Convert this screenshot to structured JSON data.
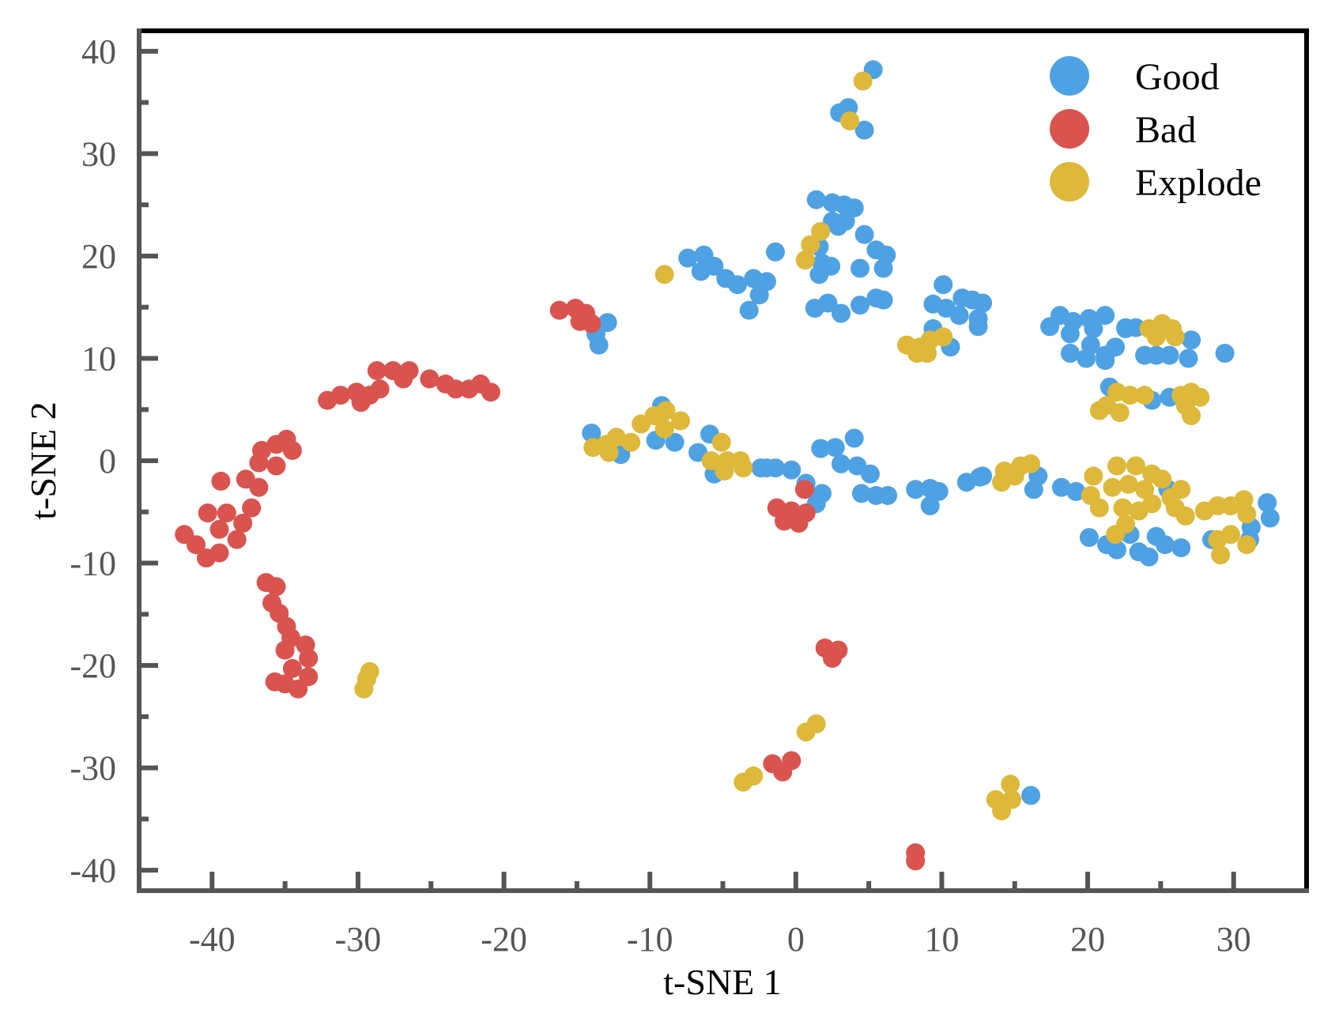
{
  "chart_data": {
    "type": "scatter",
    "title": "",
    "xlabel": "t-SNE 1",
    "ylabel": "t-SNE 2",
    "xlim": [
      -45,
      35
    ],
    "ylim": [
      -42,
      42
    ],
    "grid": false,
    "legend_position": "top-right",
    "x_ticks": [
      -40,
      -30,
      -20,
      -10,
      0,
      10,
      20,
      30
    ],
    "x_tick_labels": [
      "-40",
      "-30",
      "-20",
      "-10",
      "0",
      "10",
      "20",
      "30"
    ],
    "y_ticks": [
      40,
      30,
      20,
      10,
      0,
      -10,
      -20,
      -30,
      -40
    ],
    "y_tick_labels": [
      "40",
      "30",
      "20",
      "10",
      "0",
      "-10",
      "-20",
      "-30",
      "-40"
    ],
    "series": [
      {
        "name": "Good",
        "color": "#4EA1E2",
        "points": [
          [
            5.3,
            38.2
          ],
          [
            4.7,
            32.3
          ],
          [
            3.0,
            34.0
          ],
          [
            3.6,
            34.5
          ],
          [
            -7.4,
            19.8
          ],
          [
            -6.3,
            20.1
          ],
          [
            -6.5,
            18.5
          ],
          [
            -5.6,
            19.0
          ],
          [
            -4.8,
            17.8
          ],
          [
            -4.0,
            17.2
          ],
          [
            -2.9,
            17.8
          ],
          [
            -2.0,
            17.5
          ],
          [
            -2.5,
            16.2
          ],
          [
            -3.2,
            14.7
          ],
          [
            -1.4,
            20.4
          ],
          [
            2.9,
            22.9
          ],
          [
            1.4,
            25.5
          ],
          [
            2.5,
            25.2
          ],
          [
            3.3,
            25.0
          ],
          [
            4.0,
            24.7
          ],
          [
            2.5,
            23.4
          ],
          [
            3.4,
            23.4
          ],
          [
            1.6,
            20.9
          ],
          [
            1.8,
            19.3
          ],
          [
            2.4,
            19.0
          ],
          [
            1.6,
            18.2
          ],
          [
            4.7,
            22.1
          ],
          [
            5.5,
            20.6
          ],
          [
            6.2,
            20.1
          ],
          [
            6.0,
            18.8
          ],
          [
            4.4,
            18.8
          ],
          [
            1.3,
            14.9
          ],
          [
            2.2,
            15.4
          ],
          [
            3.1,
            14.4
          ],
          [
            4.4,
            15.2
          ],
          [
            5.5,
            15.9
          ],
          [
            6.0,
            15.7
          ],
          [
            -12.9,
            13.5
          ],
          [
            -13.5,
            11.3
          ],
          [
            -13.7,
            12.4
          ],
          [
            10.1,
            17.2
          ],
          [
            9.4,
            15.3
          ],
          [
            10.3,
            14.9
          ],
          [
            11.4,
            15.9
          ],
          [
            12.1,
            15.7
          ],
          [
            12.8,
            15.4
          ],
          [
            11.2,
            14.2
          ],
          [
            12.5,
            13.9
          ],
          [
            12.5,
            13.1
          ],
          [
            9.4,
            12.9
          ],
          [
            10.6,
            11.1
          ],
          [
            17.4,
            13.1
          ],
          [
            18.1,
            14.2
          ],
          [
            19.0,
            13.6
          ],
          [
            20.1,
            13.9
          ],
          [
            21.2,
            14.2
          ],
          [
            20.4,
            12.9
          ],
          [
            18.8,
            12.4
          ],
          [
            20.2,
            11.3
          ],
          [
            18.8,
            10.5
          ],
          [
            19.9,
            10.0
          ],
          [
            21.2,
            10.3
          ],
          [
            21.9,
            11.1
          ],
          [
            22.6,
            12.9
          ],
          [
            22.6,
            13.0
          ],
          [
            23.3,
            13.0
          ],
          [
            21.2,
            9.8
          ],
          [
            23.9,
            10.3
          ],
          [
            24.7,
            10.3
          ],
          [
            25.6,
            10.3
          ],
          [
            26.9,
            10.0
          ],
          [
            27.1,
            11.8
          ],
          [
            29.4,
            10.5
          ],
          [
            24.4,
            5.9
          ],
          [
            25.6,
            6.2
          ],
          [
            21.5,
            7.2
          ],
          [
            -14.0,
            2.7
          ],
          [
            -12.0,
            0.6
          ],
          [
            -9.2,
            5.4
          ],
          [
            -8.3,
            1.8
          ],
          [
            -9.6,
            2.0
          ],
          [
            -5.9,
            2.6
          ],
          [
            -6.7,
            0.8
          ],
          [
            -5.6,
            -1.3
          ],
          [
            -2.4,
            -0.7
          ],
          [
            -1.4,
            -0.7
          ],
          [
            -0.3,
            -0.9
          ],
          [
            -2.0,
            -0.7
          ],
          [
            0.7,
            -2.2
          ],
          [
            1.8,
            -3.2
          ],
          [
            1.4,
            -4.2
          ],
          [
            1.7,
            1.2
          ],
          [
            2.7,
            1.3
          ],
          [
            4.0,
            2.2
          ],
          [
            3.1,
            -0.3
          ],
          [
            4.2,
            -0.5
          ],
          [
            5.1,
            -1.3
          ],
          [
            4.5,
            -3.2
          ],
          [
            5.5,
            -3.4
          ],
          [
            6.3,
            -3.4
          ],
          [
            8.2,
            -2.8
          ],
          [
            9.2,
            -2.7
          ],
          [
            9.8,
            -3.0
          ],
          [
            9.2,
            -4.4
          ],
          [
            11.7,
            -2.1
          ],
          [
            12.6,
            -1.6
          ],
          [
            12.8,
            -1.5
          ],
          [
            16.3,
            -2.8
          ],
          [
            16.6,
            -1.5
          ],
          [
            18.2,
            -2.6
          ],
          [
            19.2,
            -3.0
          ],
          [
            20.1,
            -7.5
          ],
          [
            21.3,
            -8.2
          ],
          [
            22.0,
            -8.7
          ],
          [
            22.9,
            -7.2
          ],
          [
            23.5,
            -8.9
          ],
          [
            24.2,
            -9.4
          ],
          [
            24.7,
            -7.4
          ],
          [
            25.3,
            -8.2
          ],
          [
            26.4,
            -8.5
          ],
          [
            25.5,
            -2.8
          ],
          [
            28.5,
            -7.7
          ],
          [
            31.2,
            -6.5
          ],
          [
            32.3,
            -4.1
          ],
          [
            32.5,
            -5.6
          ],
          [
            31.1,
            -7.7
          ],
          [
            16.1,
            -32.7
          ]
        ]
      },
      {
        "name": "Bad",
        "color": "#D9534F",
        "points": [
          [
            -16.2,
            14.7
          ],
          [
            -15.1,
            14.9
          ],
          [
            -14.4,
            14.4
          ],
          [
            -14.0,
            13.4
          ],
          [
            -14.8,
            13.6
          ],
          [
            -32.1,
            5.9
          ],
          [
            -31.2,
            6.4
          ],
          [
            -30.1,
            6.7
          ],
          [
            -29.2,
            6.4
          ],
          [
            -29.8,
            5.7
          ],
          [
            -28.5,
            7.0
          ],
          [
            -28.7,
            8.8
          ],
          [
            -27.6,
            8.8
          ],
          [
            -26.5,
            8.8
          ],
          [
            -26.9,
            8.0
          ],
          [
            -25.1,
            8.0
          ],
          [
            -24.0,
            7.5
          ],
          [
            -23.3,
            7.0
          ],
          [
            -22.4,
            7.0
          ],
          [
            -21.6,
            7.5
          ],
          [
            -20.9,
            6.7
          ],
          [
            -34.9,
            2.1
          ],
          [
            -34.5,
            1.0
          ],
          [
            -35.6,
            1.6
          ],
          [
            -36.6,
            1.0
          ],
          [
            -36.8,
            -0.2
          ],
          [
            -35.6,
            -0.5
          ],
          [
            -39.4,
            -2.0
          ],
          [
            -37.7,
            -1.8
          ],
          [
            -36.8,
            -2.6
          ],
          [
            -37.3,
            -4.6
          ],
          [
            -40.3,
            -5.1
          ],
          [
            -39.0,
            -5.1
          ],
          [
            -37.9,
            -6.1
          ],
          [
            -38.3,
            -7.7
          ],
          [
            -41.9,
            -7.2
          ],
          [
            -41.1,
            -8.2
          ],
          [
            -40.4,
            -9.5
          ],
          [
            -39.5,
            -9.0
          ],
          [
            -39.5,
            -6.7
          ],
          [
            -36.3,
            -11.9
          ],
          [
            -35.6,
            -12.3
          ],
          [
            -35.9,
            -13.9
          ],
          [
            -35.4,
            -14.9
          ],
          [
            -34.9,
            -16.2
          ],
          [
            -34.6,
            -17.3
          ],
          [
            -33.6,
            -18.0
          ],
          [
            -35.0,
            -18.5
          ],
          [
            -33.4,
            -19.3
          ],
          [
            -34.5,
            -20.3
          ],
          [
            -33.4,
            -21.1
          ],
          [
            -35.7,
            -21.6
          ],
          [
            -34.1,
            -22.3
          ],
          [
            -35.0,
            -21.8
          ],
          [
            -1.3,
            -4.6
          ],
          [
            -0.3,
            -4.9
          ],
          [
            0.6,
            -2.8
          ],
          [
            0.7,
            -5.1
          ],
          [
            -0.8,
            -5.9
          ],
          [
            0.2,
            -6.1
          ],
          [
            2.0,
            -18.3
          ],
          [
            2.9,
            -18.5
          ],
          [
            2.5,
            -19.3
          ],
          [
            -1.6,
            -29.6
          ],
          [
            -0.3,
            -29.3
          ],
          [
            -0.9,
            -30.4
          ],
          [
            8.2,
            -38.3
          ],
          [
            8.2,
            -39.1
          ]
        ]
      },
      {
        "name": "Explode",
        "color": "#DDB83A",
        "points": [
          [
            4.6,
            37.1
          ],
          [
            3.7,
            33.2
          ],
          [
            -9.0,
            18.2
          ],
          [
            0.65,
            19.6
          ],
          [
            1.0,
            21.1
          ],
          [
            1.7,
            22.4
          ],
          [
            7.6,
            11.3
          ],
          [
            8.5,
            11.1
          ],
          [
            9.2,
            11.8
          ],
          [
            10.1,
            12.1
          ],
          [
            9.0,
            10.5
          ],
          [
            8.3,
            10.5
          ],
          [
            24.2,
            12.9
          ],
          [
            25.1,
            13.4
          ],
          [
            25.8,
            12.9
          ],
          [
            26.0,
            12.1
          ],
          [
            24.7,
            12.1
          ],
          [
            22.0,
            6.7
          ],
          [
            22.9,
            6.4
          ],
          [
            23.9,
            6.4
          ],
          [
            21.3,
            5.4
          ],
          [
            22.2,
            4.7
          ],
          [
            20.8,
            4.9
          ],
          [
            26.4,
            6.4
          ],
          [
            27.1,
            6.7
          ],
          [
            27.7,
            6.2
          ],
          [
            26.7,
            5.4
          ],
          [
            27.1,
            4.4
          ],
          [
            -13.9,
            1.3
          ],
          [
            -13.0,
            1.6
          ],
          [
            -12.3,
            2.3
          ],
          [
            -11.3,
            1.8
          ],
          [
            -10.6,
            3.6
          ],
          [
            -9.7,
            4.4
          ],
          [
            -8.9,
            4.9
          ],
          [
            -7.9,
            3.9
          ],
          [
            -9.0,
            3.1
          ],
          [
            -12.8,
            0.8
          ],
          [
            -5.1,
            1.8
          ],
          [
            -5.8,
            0.0
          ],
          [
            -4.7,
            0.0
          ],
          [
            -3.8,
            0.0
          ],
          [
            -4.9,
            -1.0
          ],
          [
            -3.6,
            -0.7
          ],
          [
            14.3,
            -1.0
          ],
          [
            15.4,
            -0.5
          ],
          [
            16.1,
            -0.3
          ],
          [
            14.1,
            -2.1
          ],
          [
            15.0,
            -1.5
          ],
          [
            20.4,
            -1.5
          ],
          [
            20.2,
            -3.4
          ],
          [
            20.8,
            -4.6
          ],
          [
            22.0,
            -0.5
          ],
          [
            23.3,
            -0.5
          ],
          [
            24.4,
            -1.3
          ],
          [
            25.1,
            -1.8
          ],
          [
            21.7,
            -2.6
          ],
          [
            22.8,
            -2.3
          ],
          [
            23.9,
            -2.8
          ],
          [
            22.4,
            -4.6
          ],
          [
            23.5,
            -4.9
          ],
          [
            24.4,
            -4.2
          ],
          [
            25.7,
            -3.6
          ],
          [
            26.4,
            -2.8
          ],
          [
            26.0,
            -4.6
          ],
          [
            26.7,
            -5.4
          ],
          [
            22.6,
            -6.2
          ],
          [
            21.9,
            -7.2
          ],
          [
            28.0,
            -4.9
          ],
          [
            28.9,
            -4.4
          ],
          [
            29.8,
            -4.4
          ],
          [
            30.7,
            -3.8
          ],
          [
            30.9,
            -5.2
          ],
          [
            28.9,
            -7.7
          ],
          [
            29.8,
            -7.2
          ],
          [
            30.9,
            -8.2
          ],
          [
            29.1,
            -9.2
          ],
          [
            -29.4,
            -21.3
          ],
          [
            -29.2,
            -20.6
          ],
          [
            -29.6,
            -22.3
          ],
          [
            0.7,
            -26.5
          ],
          [
            1.4,
            -25.7
          ],
          [
            -3.6,
            -31.4
          ],
          [
            -2.9,
            -30.8
          ],
          [
            14.7,
            -31.6
          ],
          [
            13.7,
            -33.1
          ],
          [
            14.8,
            -33.1
          ],
          [
            14.1,
            -34.2
          ]
        ]
      }
    ]
  }
}
